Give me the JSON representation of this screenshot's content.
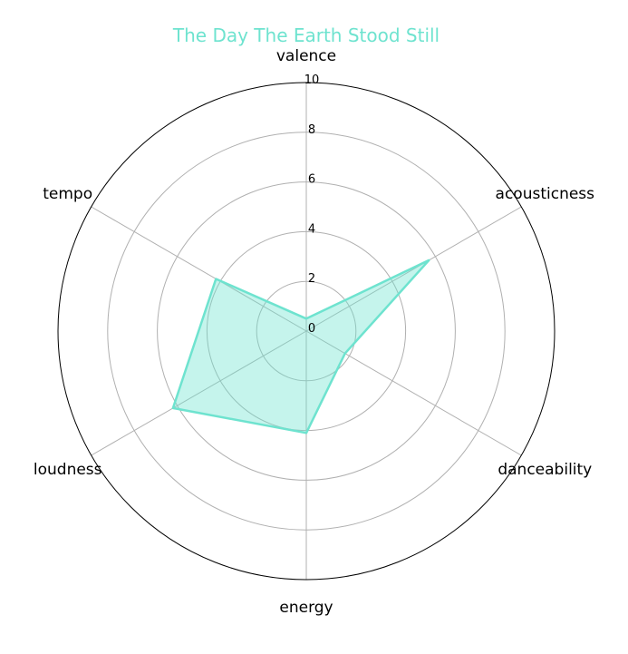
{
  "chart_data": {
    "type": "radar",
    "title": "The Day The Earth Stood Still",
    "axes": [
      "valence",
      "acousticness",
      "danceability",
      "energy",
      "loudness",
      "tempo"
    ],
    "values": [
      0.5,
      5.7,
      1.8,
      4.1,
      6.2,
      4.2
    ],
    "rlim": [
      0,
      10
    ],
    "rticks": [
      0,
      2,
      4,
      6,
      8,
      10
    ],
    "grid": true,
    "colors": {
      "line": "#6ee3cf",
      "fill": "#6ee3cf",
      "title": "#6ee3cf",
      "grid": "#b0b0b0",
      "frame": "#000000"
    }
  }
}
